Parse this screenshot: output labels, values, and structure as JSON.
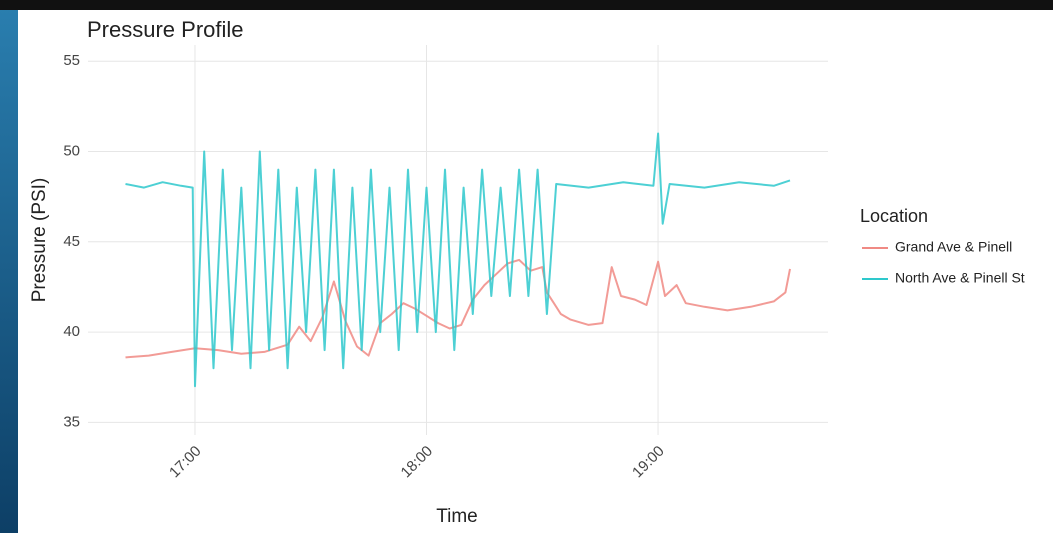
{
  "chart_data": {
    "type": "line",
    "title": "Pressure Profile",
    "x_label": "Time",
    "y_label": "Pressure (PSI)",
    "legend_title": "Location",
    "legend": "right",
    "grid": true,
    "xlim": [
      16.538,
      19.734
    ],
    "xticks": [
      {
        "value": 17,
        "label": "17:00"
      },
      {
        "value": 18,
        "label": "18:00"
      },
      {
        "value": 19,
        "label": "19:00"
      }
    ],
    "ylim": [
      34.3,
      55.9
    ],
    "yticks": [
      35,
      40,
      45,
      50,
      55
    ],
    "series": [
      {
        "name": "Grand Ave & Pinell",
        "color": "#f08a84",
        "x": [
          16.7,
          16.8,
          16.9,
          17.0,
          17.1,
          17.2,
          17.3,
          17.4,
          17.45,
          17.5,
          17.55,
          17.6,
          17.65,
          17.7,
          17.75,
          17.8,
          17.85,
          17.9,
          17.95,
          18.0,
          18.05,
          18.1,
          18.15,
          18.2,
          18.25,
          18.3,
          18.35,
          18.4,
          18.45,
          18.5,
          18.52,
          18.55,
          18.58,
          18.62,
          18.7,
          18.76,
          18.8,
          18.84,
          18.9,
          18.95,
          19.0,
          19.03,
          19.08,
          19.12,
          19.2,
          19.3,
          19.4,
          19.5,
          19.55,
          19.57
        ],
        "values": [
          38.6,
          38.7,
          38.9,
          39.1,
          39.0,
          38.8,
          38.9,
          39.3,
          40.3,
          39.5,
          40.8,
          42.8,
          40.6,
          39.2,
          38.7,
          40.5,
          41.0,
          41.6,
          41.3,
          40.9,
          40.5,
          40.2,
          40.4,
          41.8,
          42.6,
          43.2,
          43.8,
          44.0,
          43.4,
          43.6,
          42.2,
          41.6,
          41.0,
          40.7,
          40.4,
          40.5,
          43.6,
          42.0,
          41.8,
          41.5,
          43.9,
          42.0,
          42.6,
          41.6,
          41.4,
          41.2,
          41.4,
          41.7,
          42.2,
          43.5
        ]
      },
      {
        "name": "North Ave & Pinell St",
        "color": "#2ec8cc",
        "x": [
          16.7,
          16.78,
          16.86,
          16.94,
          16.99,
          17.0,
          17.04,
          17.08,
          17.12,
          17.16,
          17.2,
          17.24,
          17.28,
          17.32,
          17.36,
          17.4,
          17.44,
          17.48,
          17.52,
          17.56,
          17.6,
          17.64,
          17.68,
          17.72,
          17.76,
          17.8,
          17.84,
          17.88,
          17.92,
          17.96,
          18.0,
          18.04,
          18.08,
          18.12,
          18.16,
          18.2,
          18.24,
          18.28,
          18.32,
          18.36,
          18.4,
          18.44,
          18.48,
          18.52,
          18.56,
          18.7,
          18.85,
          18.98,
          19.0,
          19.02,
          19.05,
          19.2,
          19.35,
          19.5,
          19.57
        ],
        "values": [
          48.2,
          48.0,
          48.3,
          48.1,
          48.0,
          37,
          50,
          38,
          49,
          39,
          48,
          38,
          50,
          39,
          49,
          38,
          48,
          40,
          49,
          39,
          49,
          38,
          48,
          39,
          49,
          40,
          48,
          39,
          49,
          40,
          48,
          40,
          49,
          39,
          48,
          41,
          49,
          42,
          48,
          42,
          49,
          42,
          49,
          41,
          48.2,
          48.0,
          48.3,
          48.1,
          51,
          46,
          48.2,
          48.0,
          48.3,
          48.1,
          48.4
        ]
      }
    ]
  }
}
